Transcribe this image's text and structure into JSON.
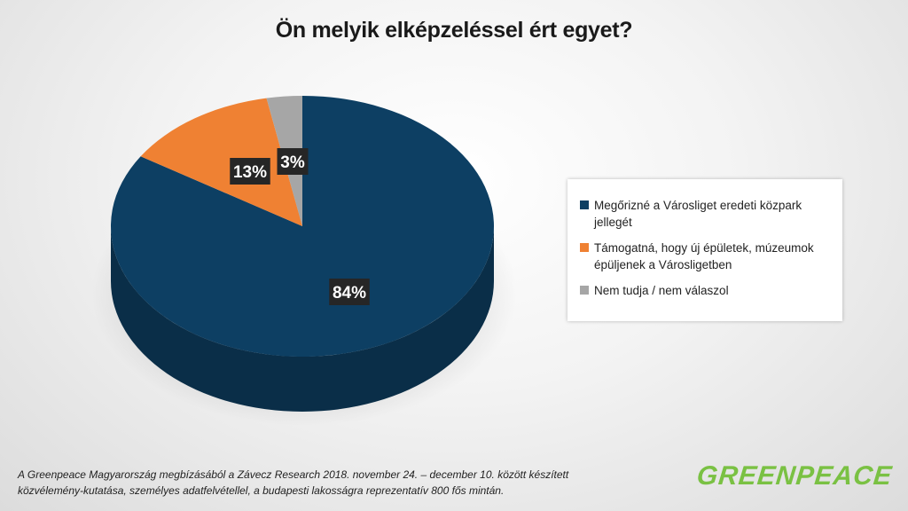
{
  "chart_data": {
    "type": "pie",
    "title": "Ön melyik elképzeléssel ért egyet?",
    "slices": [
      {
        "label": "Megőrizné a Városliget eredeti közpark jellegét",
        "value": 84,
        "display": "84%",
        "color": "#0d3f63",
        "side_color": "#0a2e48"
      },
      {
        "label": "Támogatná, hogy új épületek, múzeumok épüljenek a Városligetben",
        "value": 13,
        "display": "13%",
        "color": "#ef8133",
        "side_color": "#b95f22"
      },
      {
        "label": "Nem tudja / nem válaszol",
        "value": 3,
        "display": "3%",
        "color": "#a6a6a6",
        "side_color": "#7f7f7f"
      }
    ],
    "legend_position": "right"
  },
  "footnote": "A Greenpeace Magyarország megbízásából a Závecz Research 2018. november 24. – december 10. között készített közvélemény-kutatása, személyes adatfelvétellel, a budapesti lakosságra reprezentatív 800 fős mintán.",
  "logo_text": "GREENPEACE",
  "colors": {
    "label_bg": "#262626",
    "label_text": "#ffffff",
    "logo": "#7ac143"
  }
}
